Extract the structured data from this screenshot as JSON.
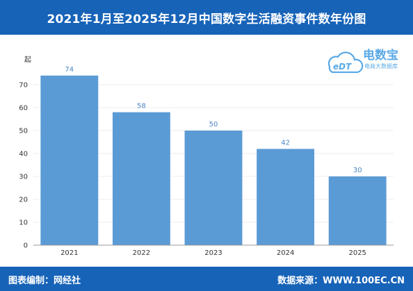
{
  "title": "2021年1月至2025年12月中国数字生活融资事件数年份图",
  "footer": {
    "left": "图表编制：网经社",
    "right": "数据来源：WWW.100EC.CN"
  },
  "logo": {
    "brand": "电数宝",
    "tagline": "电商大数据库",
    "icon": "cloud-edt-logo-icon",
    "color": "#5aa9e6"
  },
  "colors": {
    "bar": "#5b9bd5",
    "header": "#1763b8",
    "label": "#4a86c5"
  },
  "chart_data": {
    "type": "bar",
    "categories": [
      "2021",
      "2022",
      "2023",
      "2024",
      "2025"
    ],
    "values": [
      74,
      58,
      50,
      42,
      30
    ],
    "title": "",
    "xlabel": "",
    "ylabel": "起",
    "ylim": [
      0,
      80
    ],
    "yticks": [
      0,
      10,
      20,
      30,
      40,
      50,
      60,
      70
    ],
    "grid": true,
    "data_labels": true
  }
}
